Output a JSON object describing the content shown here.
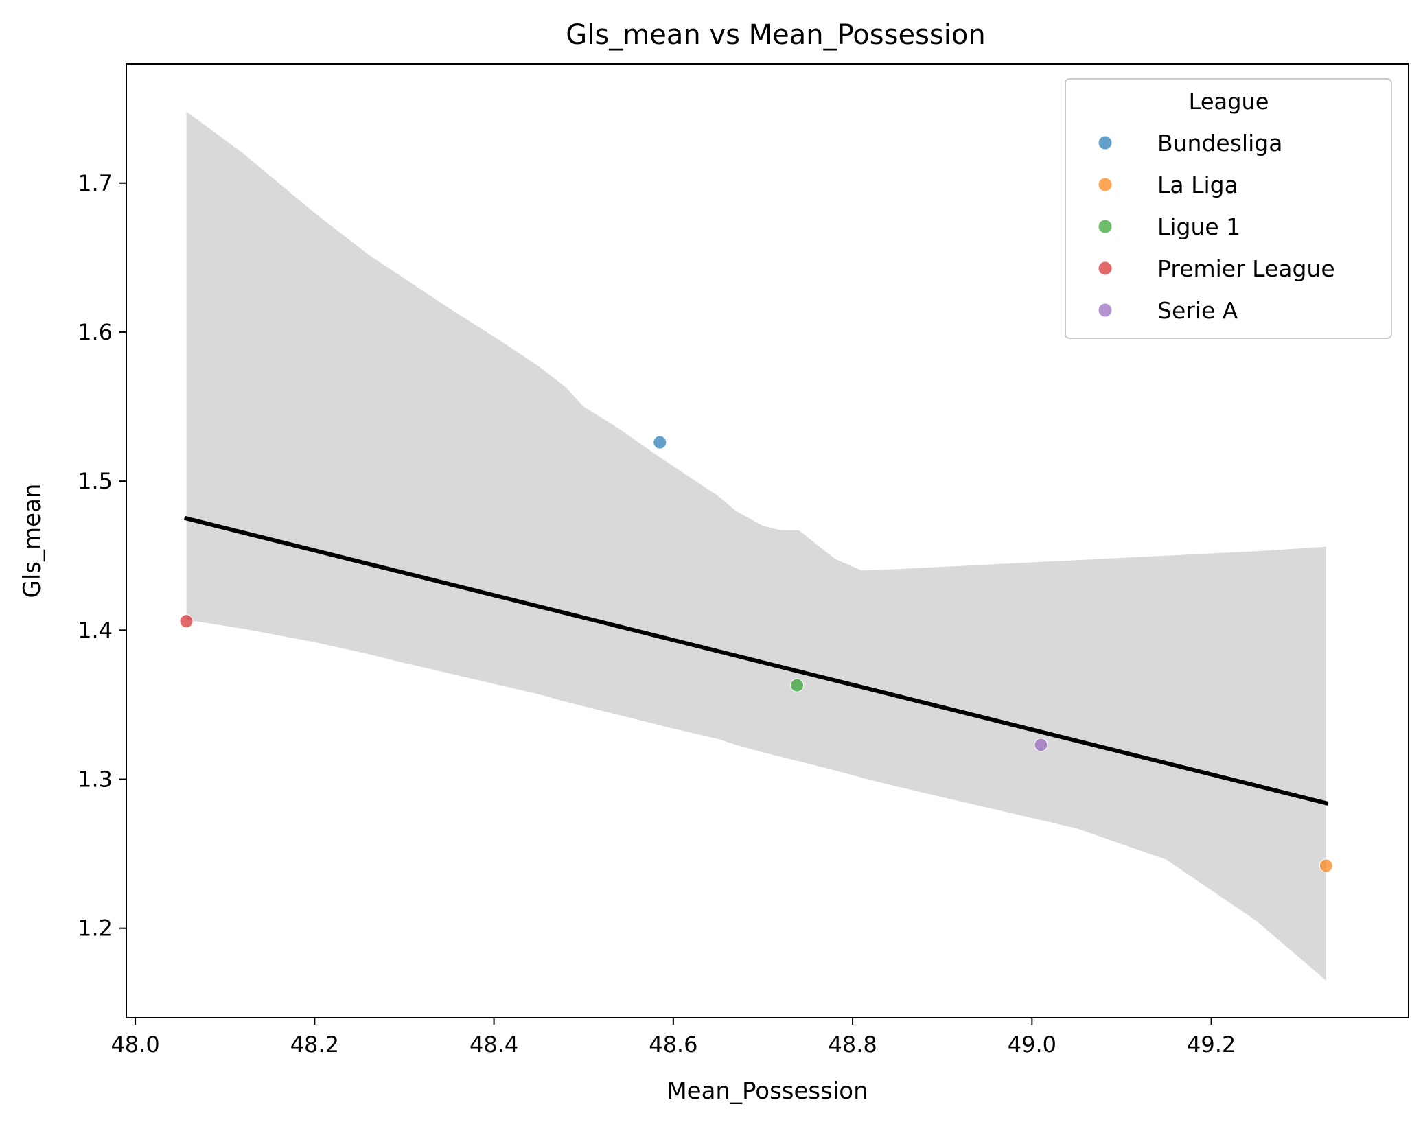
{
  "chart_data": {
    "type": "scatter",
    "title": "Gls_mean vs Mean_Possession",
    "xlabel": "Mean_Possession",
    "ylabel": "Gls_mean",
    "xlim": [
      47.99,
      49.42
    ],
    "ylim": [
      1.14,
      1.78
    ],
    "xticks": [
      "48.0",
      "48.2",
      "48.4",
      "48.6",
      "48.8",
      "49.0",
      "49.2"
    ],
    "yticks": [
      "1.2",
      "1.3",
      "1.4",
      "1.5",
      "1.6",
      "1.7"
    ],
    "grid": false,
    "legend": {
      "title": "League",
      "placement": "top-right"
    },
    "series": [
      {
        "name": "Bundesliga",
        "color": "#1f77b4",
        "x": [
          48.585
        ],
        "y": [
          1.526
        ]
      },
      {
        "name": "La Liga",
        "color": "#ff7f0e",
        "x": [
          49.328
        ],
        "y": [
          1.242
        ]
      },
      {
        "name": "Ligue 1",
        "color": "#2ca02c",
        "x": [
          48.738
        ],
        "y": [
          1.363
        ]
      },
      {
        "name": "Premier League",
        "color": "#d62728",
        "x": [
          48.057
        ],
        "y": [
          1.406
        ]
      },
      {
        "name": "Serie A",
        "color": "#9467bd",
        "x": [
          49.01
        ],
        "y": [
          1.323
        ]
      }
    ],
    "regression": {
      "color": "#000000",
      "x": [
        48.057,
        49.328
      ],
      "y": [
        1.475,
        1.284
      ]
    },
    "confidence_band": {
      "color": "#d9d9d9",
      "x": [
        48.057,
        48.12,
        48.2,
        48.26,
        48.3,
        48.35,
        48.4,
        48.45,
        48.48,
        48.5,
        48.54,
        48.58,
        48.6,
        48.65,
        48.67,
        48.7,
        48.72,
        48.74,
        48.78,
        48.81,
        48.85,
        48.95,
        49.05,
        49.15,
        49.25,
        49.328
      ],
      "upper": [
        1.748,
        1.72,
        1.68,
        1.652,
        1.636,
        1.616,
        1.597,
        1.577,
        1.563,
        1.55,
        1.535,
        1.518,
        1.51,
        1.49,
        1.48,
        1.47,
        1.467,
        1.467,
        1.448,
        1.44,
        1.441,
        1.444,
        1.447,
        1.45,
        1.453,
        1.456
      ],
      "lower": [
        1.407,
        1.401,
        1.392,
        1.384,
        1.378,
        1.371,
        1.364,
        1.357,
        1.352,
        1.349,
        1.343,
        1.337,
        1.334,
        1.327,
        1.323,
        1.318,
        1.315,
        1.312,
        1.306,
        1.301,
        1.295,
        1.281,
        1.267,
        1.246,
        1.205,
        1.165
      ]
    }
  }
}
